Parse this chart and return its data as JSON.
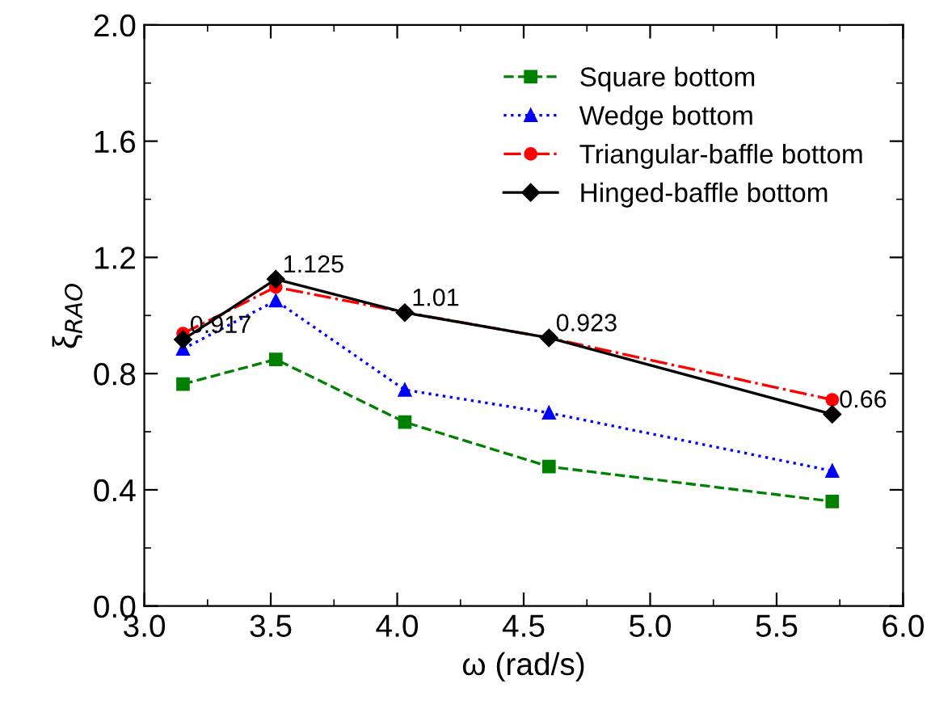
{
  "chart_data": {
    "type": "line",
    "xlabel": "ω (rad/s)",
    "ylabel": "ξ$_{RAO}$",
    "x": [
      3.153,
      3.52,
      4.03,
      4.6,
      5.72
    ],
    "xlim": [
      3.0,
      6.0
    ],
    "xticks": [
      {
        "value": 3.0,
        "label": "3.0"
      },
      {
        "value": 3.5,
        "label": "3.5"
      },
      {
        "value": 4.0,
        "label": "4.0"
      },
      {
        "value": 4.5,
        "label": "4.5"
      },
      {
        "value": 5.0,
        "label": "5.0"
      },
      {
        "value": 5.5,
        "label": "5.5"
      },
      {
        "value": 6.0,
        "label": "6.0"
      }
    ],
    "ylim": [
      0.0,
      2.0
    ],
    "yticks": [
      {
        "value": 0.0,
        "label": "0.0"
      },
      {
        "value": 0.4,
        "label": "0.4"
      },
      {
        "value": 0.8,
        "label": "0.8"
      },
      {
        "value": 1.2,
        "label": "1.2"
      },
      {
        "value": 1.6,
        "label": "1.6"
      },
      {
        "value": 2.0,
        "label": "2.0"
      }
    ],
    "legend": "top right",
    "grid": false,
    "series": [
      {
        "name": "Square bottom",
        "color": "#008000",
        "marker": "square",
        "line_style": "dashed",
        "values": [
          0.764,
          0.849,
          0.633,
          0.48,
          0.36
        ]
      },
      {
        "name": "Wedge bottom",
        "color": "#0000ff",
        "marker": "triangle",
        "line_style": "dotted",
        "values": [
          0.885,
          1.051,
          0.744,
          0.665,
          0.465
        ]
      },
      {
        "name": "Triangular-baffle bottom",
        "color": "#ff0000",
        "marker": "circle",
        "line_style": "dashdot",
        "values": [
          0.938,
          1.098,
          1.011,
          0.923,
          0.71
        ]
      },
      {
        "name": "Hinged-baffle bottom",
        "color": "#000000",
        "marker": "diamond",
        "line_style": "solid",
        "values": [
          0.917,
          1.125,
          1.01,
          0.923,
          0.66
        ],
        "value_labels": [
          "0.917",
          "1.125",
          "1.01",
          "0.923",
          "0.66"
        ]
      }
    ]
  }
}
